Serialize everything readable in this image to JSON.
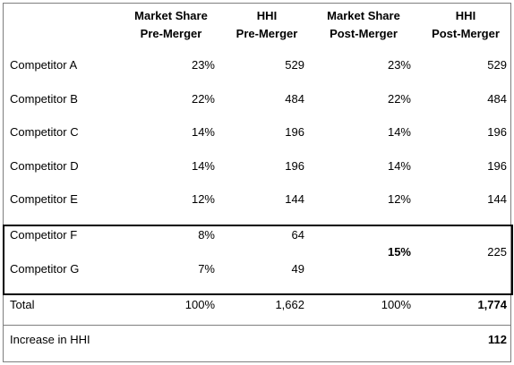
{
  "headers": [
    {
      "line1": "Market Share",
      "line2": "Pre-Merger"
    },
    {
      "line1": "HHI",
      "line2": "Pre-Merger"
    },
    {
      "line1": "Market Share",
      "line2": "Post-Merger"
    },
    {
      "line1": "HHI",
      "line2": "Post-Merger"
    }
  ],
  "rows": [
    {
      "label": "Competitor A",
      "share_pre": "23%",
      "hhi_pre": "529",
      "share_post": "23%",
      "hhi_post": "529"
    },
    {
      "label": "Competitor B",
      "share_pre": "22%",
      "hhi_pre": "484",
      "share_post": "22%",
      "hhi_post": "484"
    },
    {
      "label": "Competitor C",
      "share_pre": "14%",
      "hhi_pre": "196",
      "share_post": "14%",
      "hhi_post": "196"
    },
    {
      "label": "Competitor D",
      "share_pre": "14%",
      "hhi_pre": "196",
      "share_post": "14%",
      "hhi_post": "196"
    },
    {
      "label": "Competitor E",
      "share_pre": "12%",
      "hhi_pre": "144",
      "share_post": "12%",
      "hhi_post": "144"
    }
  ],
  "merged": {
    "rows": [
      {
        "label": "Competitor F",
        "share_pre": "8%",
        "hhi_pre": "64"
      },
      {
        "label": "Competitor G",
        "share_pre": "7%",
        "hhi_pre": "49"
      }
    ],
    "share_post": "15%",
    "hhi_post": "225"
  },
  "total": {
    "label": "Total",
    "share_pre": "100%",
    "hhi_pre": "1,662",
    "share_post": "100%",
    "hhi_post": "1,774"
  },
  "increase": {
    "label": "Increase in HHI",
    "value": "112"
  }
}
